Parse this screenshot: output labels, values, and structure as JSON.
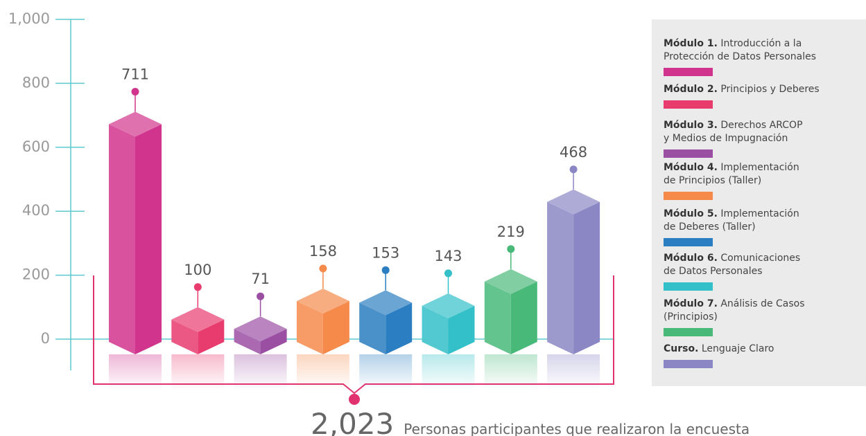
{
  "chart_data": {
    "type": "bar3d",
    "categories": [
      {
        "prefix": "Módulo 1.",
        "text": "Introducción a la\nProtección de Datos Personales"
      },
      {
        "prefix": "Módulo 2.",
        "text": "Principios y Deberes"
      },
      {
        "prefix": "Módulo 3.",
        "text": "Derechos ARCOP\ny Medios de Impugnación"
      },
      {
        "prefix": "Módulo 4.",
        "text": "Implementación\nde Principios (Taller)"
      },
      {
        "prefix": "Módulo 5.",
        "text": "Implementación\nde Deberes (Taller)"
      },
      {
        "prefix": "Módulo 6.",
        "text": "Comunicaciones\nde Datos Personales"
      },
      {
        "prefix": "Módulo 7.",
        "text": "Análisis de Casos\n(Principios)"
      },
      {
        "prefix": "Curso.",
        "text": "Lenguaje Claro"
      }
    ],
    "values": [
      711,
      100,
      71,
      158,
      153,
      143,
      219,
      468
    ],
    "colors": [
      "#d1348c",
      "#e83b6e",
      "#9b4fa3",
      "#f58a4b",
      "#2a7ec1",
      "#33c0c8",
      "#49b97a",
      "#8b87c4"
    ],
    "ylim": [
      0,
      1000
    ],
    "yticks": [
      0,
      200,
      400,
      600,
      800,
      {
        "value": 1000,
        "label": "1,000"
      }
    ],
    "total": {
      "value": 2023,
      "label": "2,023"
    },
    "total_text": "Personas participantes que realizaron la encuesta"
  }
}
